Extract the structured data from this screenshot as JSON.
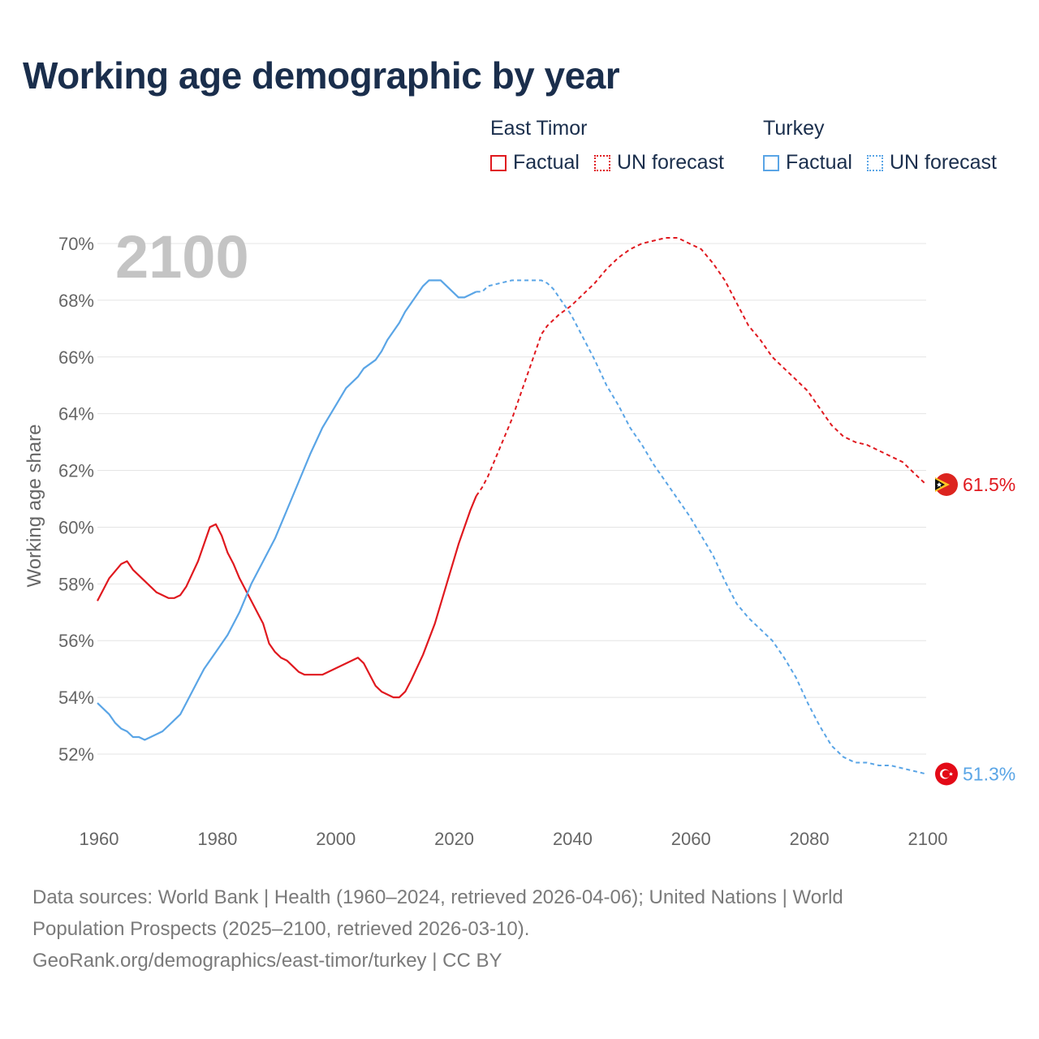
{
  "title": "Working age demographic by year",
  "year_watermark": "2100",
  "legend": {
    "groups": [
      {
        "name": "East Timor",
        "factual": "Factual",
        "forecast": "UN forecast",
        "color": "#e0191f"
      },
      {
        "name": "Turkey",
        "factual": "Factual",
        "forecast": "UN forecast",
        "color": "#5aa5e6"
      }
    ]
  },
  "footer": {
    "line1": "Data sources: World Bank | Health (1960–2024, retrieved 2026-04-06); United Nations | World",
    "line2": "Population Prospects (2025–2100, retrieved 2026-03-10).",
    "line3": "GeoRank.org/demographics/east-timor/turkey | CC BY"
  },
  "chart_data": {
    "type": "line",
    "title": "Working age demographic by year",
    "xlabel": "",
    "ylabel": "Working age share",
    "xlim": [
      1960,
      2100
    ],
    "ylim": [
      50,
      70.5
    ],
    "x_ticks": [
      1960,
      1980,
      2000,
      2020,
      2040,
      2060,
      2080,
      2100
    ],
    "y_ticks": [
      52,
      54,
      56,
      58,
      60,
      62,
      64,
      66,
      68,
      70
    ],
    "y_tick_suffix": "%",
    "grid": true,
    "factual_end_year": 2024,
    "series": [
      {
        "name": "East Timor",
        "color": "#e0191f",
        "end_label": "61.5%",
        "flag": "east-timor-flag",
        "points": [
          [
            1960,
            57.4
          ],
          [
            1962,
            58.2
          ],
          [
            1964,
            58.7
          ],
          [
            1965,
            58.8
          ],
          [
            1966,
            58.5
          ],
          [
            1968,
            58.1
          ],
          [
            1970,
            57.7
          ],
          [
            1972,
            57.5
          ],
          [
            1973,
            57.5
          ],
          [
            1974,
            57.6
          ],
          [
            1975,
            57.9
          ],
          [
            1977,
            58.8
          ],
          [
            1979,
            60.0
          ],
          [
            1980,
            60.1
          ],
          [
            1981,
            59.7
          ],
          [
            1982,
            59.1
          ],
          [
            1983,
            58.7
          ],
          [
            1984,
            58.2
          ],
          [
            1986,
            57.4
          ],
          [
            1988,
            56.6
          ],
          [
            1989,
            55.9
          ],
          [
            1990,
            55.6
          ],
          [
            1991,
            55.4
          ],
          [
            1992,
            55.3
          ],
          [
            1994,
            54.9
          ],
          [
            1995,
            54.8
          ],
          [
            1998,
            54.8
          ],
          [
            2000,
            55.0
          ],
          [
            2002,
            55.2
          ],
          [
            2004,
            55.4
          ],
          [
            2005,
            55.2
          ],
          [
            2006,
            54.8
          ],
          [
            2007,
            54.4
          ],
          [
            2008,
            54.2
          ],
          [
            2010,
            54.0
          ],
          [
            2011,
            54.0
          ],
          [
            2012,
            54.2
          ],
          [
            2013,
            54.6
          ],
          [
            2015,
            55.5
          ],
          [
            2017,
            56.6
          ],
          [
            2019,
            58.0
          ],
          [
            2021,
            59.4
          ],
          [
            2022,
            60.0
          ],
          [
            2023,
            60.6
          ],
          [
            2024,
            61.1
          ],
          [
            2025,
            61.4
          ],
          [
            2026,
            61.8
          ],
          [
            2028,
            62.8
          ],
          [
            2030,
            63.8
          ],
          [
            2032,
            65.0
          ],
          [
            2034,
            66.2
          ],
          [
            2035,
            66.8
          ],
          [
            2036,
            67.1
          ],
          [
            2038,
            67.5
          ],
          [
            2040,
            67.8
          ],
          [
            2042,
            68.2
          ],
          [
            2044,
            68.6
          ],
          [
            2046,
            69.1
          ],
          [
            2048,
            69.5
          ],
          [
            2050,
            69.8
          ],
          [
            2052,
            70.0
          ],
          [
            2054,
            70.1
          ],
          [
            2056,
            70.2
          ],
          [
            2058,
            70.2
          ],
          [
            2060,
            70.0
          ],
          [
            2062,
            69.8
          ],
          [
            2064,
            69.3
          ],
          [
            2066,
            68.7
          ],
          [
            2068,
            67.9
          ],
          [
            2070,
            67.1
          ],
          [
            2072,
            66.6
          ],
          [
            2074,
            66.0
          ],
          [
            2076,
            65.6
          ],
          [
            2078,
            65.2
          ],
          [
            2080,
            64.8
          ],
          [
            2082,
            64.2
          ],
          [
            2084,
            63.6
          ],
          [
            2086,
            63.2
          ],
          [
            2088,
            63.0
          ],
          [
            2090,
            62.9
          ],
          [
            2092,
            62.7
          ],
          [
            2094,
            62.5
          ],
          [
            2096,
            62.3
          ],
          [
            2098,
            61.9
          ],
          [
            2100,
            61.5
          ]
        ]
      },
      {
        "name": "Turkey",
        "color": "#5aa5e6",
        "end_label": "51.3%",
        "flag": "turkey-flag",
        "points": [
          [
            1960,
            53.8
          ],
          [
            1962,
            53.4
          ],
          [
            1963,
            53.1
          ],
          [
            1964,
            52.9
          ],
          [
            1965,
            52.8
          ],
          [
            1966,
            52.6
          ],
          [
            1967,
            52.6
          ],
          [
            1968,
            52.5
          ],
          [
            1970,
            52.7
          ],
          [
            1971,
            52.8
          ],
          [
            1973,
            53.2
          ],
          [
            1974,
            53.4
          ],
          [
            1975,
            53.8
          ],
          [
            1977,
            54.6
          ],
          [
            1978,
            55.0
          ],
          [
            1980,
            55.6
          ],
          [
            1982,
            56.2
          ],
          [
            1984,
            57.0
          ],
          [
            1986,
            58.0
          ],
          [
            1988,
            58.8
          ],
          [
            1990,
            59.6
          ],
          [
            1992,
            60.6
          ],
          [
            1994,
            61.6
          ],
          [
            1996,
            62.6
          ],
          [
            1998,
            63.5
          ],
          [
            2000,
            64.2
          ],
          [
            2002,
            64.9
          ],
          [
            2004,
            65.3
          ],
          [
            2005,
            65.6
          ],
          [
            2007,
            65.9
          ],
          [
            2008,
            66.2
          ],
          [
            2009,
            66.6
          ],
          [
            2011,
            67.2
          ],
          [
            2012,
            67.6
          ],
          [
            2014,
            68.2
          ],
          [
            2015,
            68.5
          ],
          [
            2016,
            68.7
          ],
          [
            2018,
            68.7
          ],
          [
            2019,
            68.5
          ],
          [
            2020,
            68.3
          ],
          [
            2021,
            68.1
          ],
          [
            2022,
            68.1
          ],
          [
            2023,
            68.2
          ],
          [
            2024,
            68.3
          ],
          [
            2025,
            68.3
          ],
          [
            2026,
            68.5
          ],
          [
            2028,
            68.6
          ],
          [
            2030,
            68.7
          ],
          [
            2032,
            68.7
          ],
          [
            2034,
            68.7
          ],
          [
            2035,
            68.7
          ],
          [
            2036,
            68.6
          ],
          [
            2037,
            68.4
          ],
          [
            2038,
            68.1
          ],
          [
            2040,
            67.5
          ],
          [
            2042,
            66.7
          ],
          [
            2044,
            65.9
          ],
          [
            2046,
            65.0
          ],
          [
            2048,
            64.3
          ],
          [
            2050,
            63.5
          ],
          [
            2052,
            62.9
          ],
          [
            2054,
            62.2
          ],
          [
            2056,
            61.6
          ],
          [
            2058,
            61.0
          ],
          [
            2060,
            60.4
          ],
          [
            2062,
            59.7
          ],
          [
            2064,
            59.0
          ],
          [
            2066,
            58.1
          ],
          [
            2068,
            57.3
          ],
          [
            2070,
            56.8
          ],
          [
            2072,
            56.4
          ],
          [
            2074,
            56.0
          ],
          [
            2076,
            55.4
          ],
          [
            2078,
            54.7
          ],
          [
            2080,
            53.8
          ],
          [
            2082,
            53.0
          ],
          [
            2084,
            52.3
          ],
          [
            2086,
            51.9
          ],
          [
            2088,
            51.7
          ],
          [
            2090,
            51.7
          ],
          [
            2092,
            51.6
          ],
          [
            2094,
            51.6
          ],
          [
            2096,
            51.5
          ],
          [
            2098,
            51.4
          ],
          [
            2100,
            51.3
          ]
        ]
      }
    ]
  }
}
